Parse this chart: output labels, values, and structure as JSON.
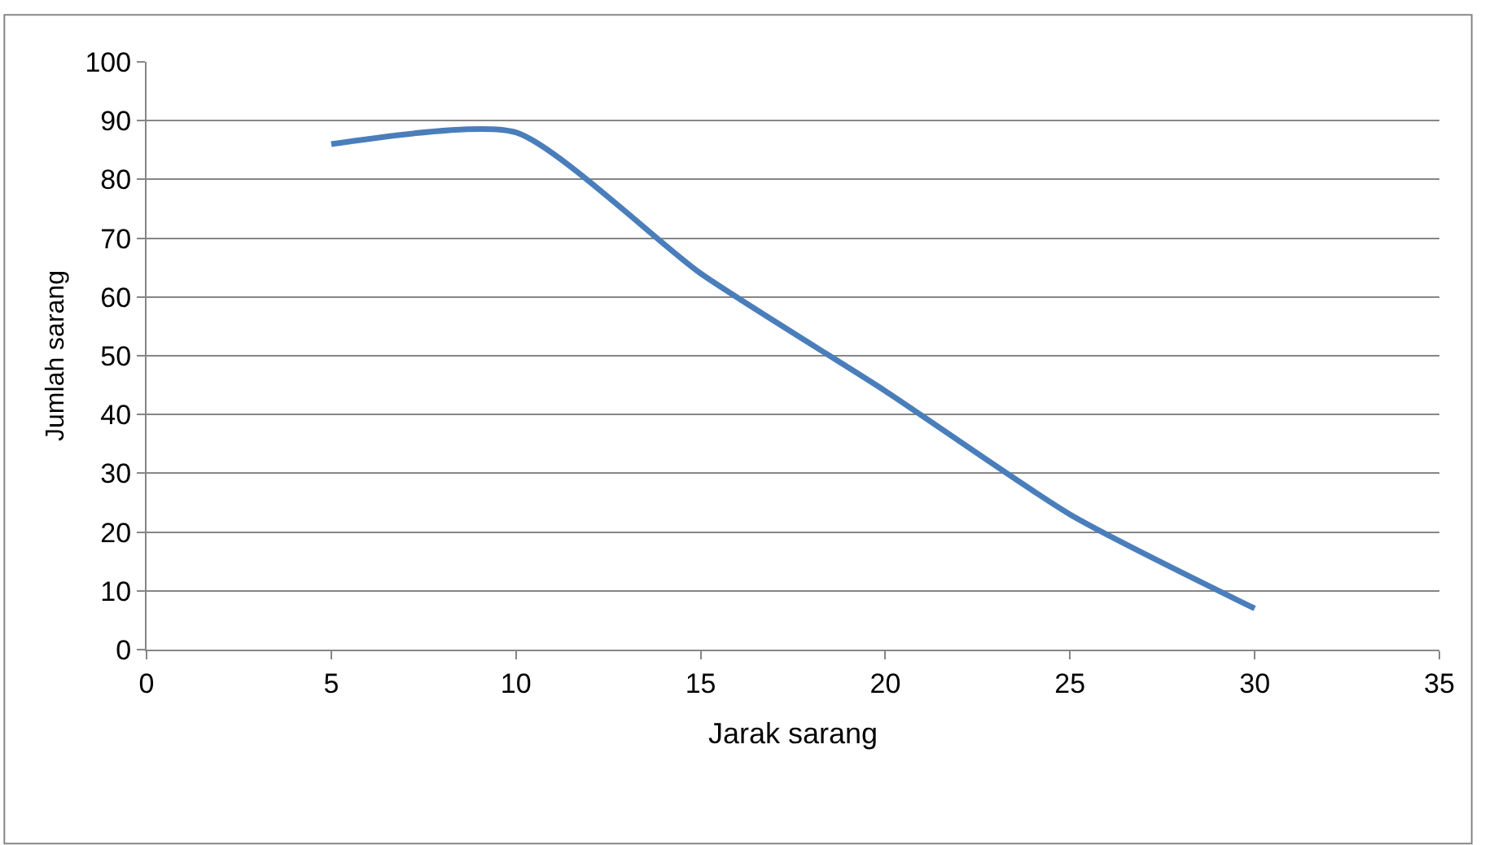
{
  "chart_data": {
    "type": "line",
    "xlabel": "Jarak sarang",
    "ylabel": "Jumlah sarang",
    "x": [
      5,
      10,
      15,
      20,
      25,
      30
    ],
    "series": [
      {
        "color": "#4a7ebb",
        "values": [
          86,
          88,
          64,
          44,
          23,
          7
        ]
      }
    ],
    "xlim": [
      0,
      35
    ],
    "xticks": [
      0,
      5,
      10,
      15,
      20,
      25,
      30,
      35
    ],
    "ylim": [
      0,
      100
    ],
    "yticks": [
      0,
      10,
      20,
      30,
      40,
      50,
      60,
      70,
      80,
      90,
      100
    ],
    "grid": "y",
    "marker": "none",
    "line_style": "solid"
  }
}
